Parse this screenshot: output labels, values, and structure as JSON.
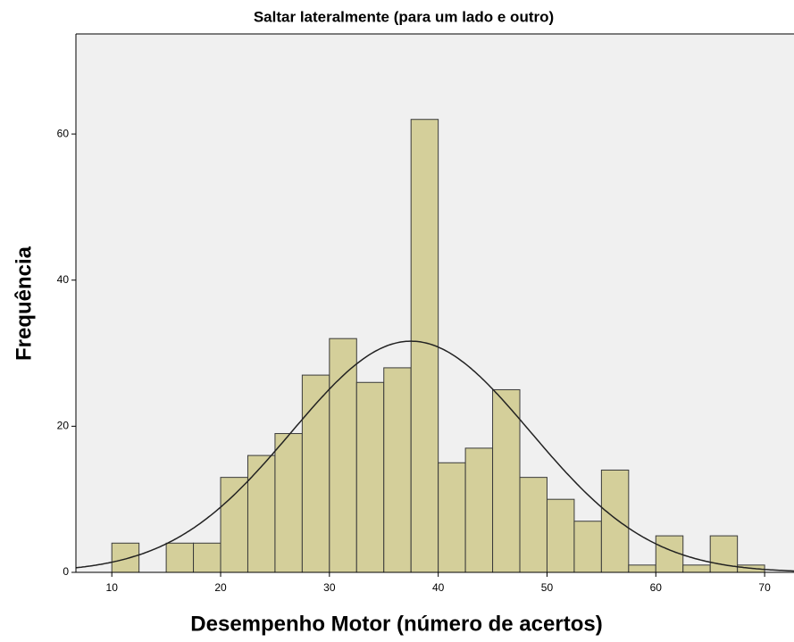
{
  "chart_data": {
    "type": "histogram",
    "title": "Saltar lateralmente (para um lado e outro)",
    "xlabel": "Desempenho Motor (número de acertos)",
    "ylabel": "Frequência",
    "bins": [
      10,
      12.5,
      15,
      17.5,
      20,
      22.5,
      25,
      27.5,
      30,
      32.5,
      35,
      37.5,
      40,
      42.5,
      45,
      47.5,
      50,
      52.5,
      55,
      57.5,
      60,
      62.5,
      65,
      67.5,
      70
    ],
    "counts": [
      4,
      0,
      4,
      4,
      13,
      16,
      19,
      27,
      32,
      26,
      28,
      62,
      15,
      17,
      25,
      13,
      10,
      7,
      14,
      1,
      5,
      1,
      5,
      1
    ],
    "color": "#d4cf9a",
    "curve": {
      "mean": 37.5,
      "std": 11
    },
    "xlim": [
      6.7,
      72.7
    ],
    "xticks": [
      10,
      20,
      30,
      40,
      50,
      60,
      70
    ],
    "ylim": [
      0,
      73.7
    ],
    "yticks": [
      0,
      20,
      40,
      60
    ]
  }
}
